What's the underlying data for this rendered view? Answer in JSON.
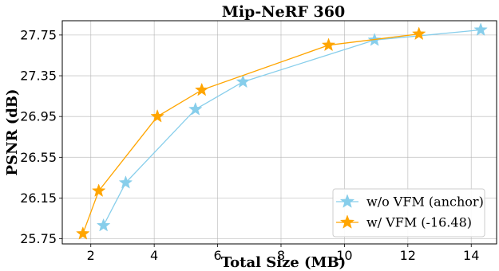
{
  "chart_data": {
    "type": "line",
    "title": "Mip-NeRF 360",
    "xlabel": "Total Size (MB)",
    "ylabel": "PSNR (dB)",
    "xlim": [
      1.1,
      14.8
    ],
    "ylim": [
      25.7,
      27.89
    ],
    "xticks": [
      2,
      4,
      6,
      8,
      10,
      12,
      14
    ],
    "yticks": [
      25.75,
      26.15,
      26.55,
      26.95,
      27.35,
      27.75
    ],
    "ytick_labels": [
      "25.75",
      "26.15",
      "26.55",
      "26.95",
      "27.35",
      "27.75"
    ],
    "grid": true,
    "legend_position": "bottom-right",
    "series": [
      {
        "name": "w/o VFM (anchor)",
        "color": "#87ceeb",
        "marker": "star",
        "x": [
          2.4,
          3.1,
          5.3,
          6.8,
          10.95,
          14.3
        ],
        "y": [
          25.88,
          26.3,
          27.02,
          27.29,
          27.7,
          27.8
        ]
      },
      {
        "name": "w/ VFM (-16.48)",
        "color": "#ffa500",
        "marker": "star",
        "x": [
          1.75,
          2.25,
          4.1,
          5.5,
          9.5,
          12.35
        ],
        "y": [
          25.8,
          26.22,
          26.95,
          27.21,
          27.65,
          27.76
        ]
      }
    ]
  }
}
